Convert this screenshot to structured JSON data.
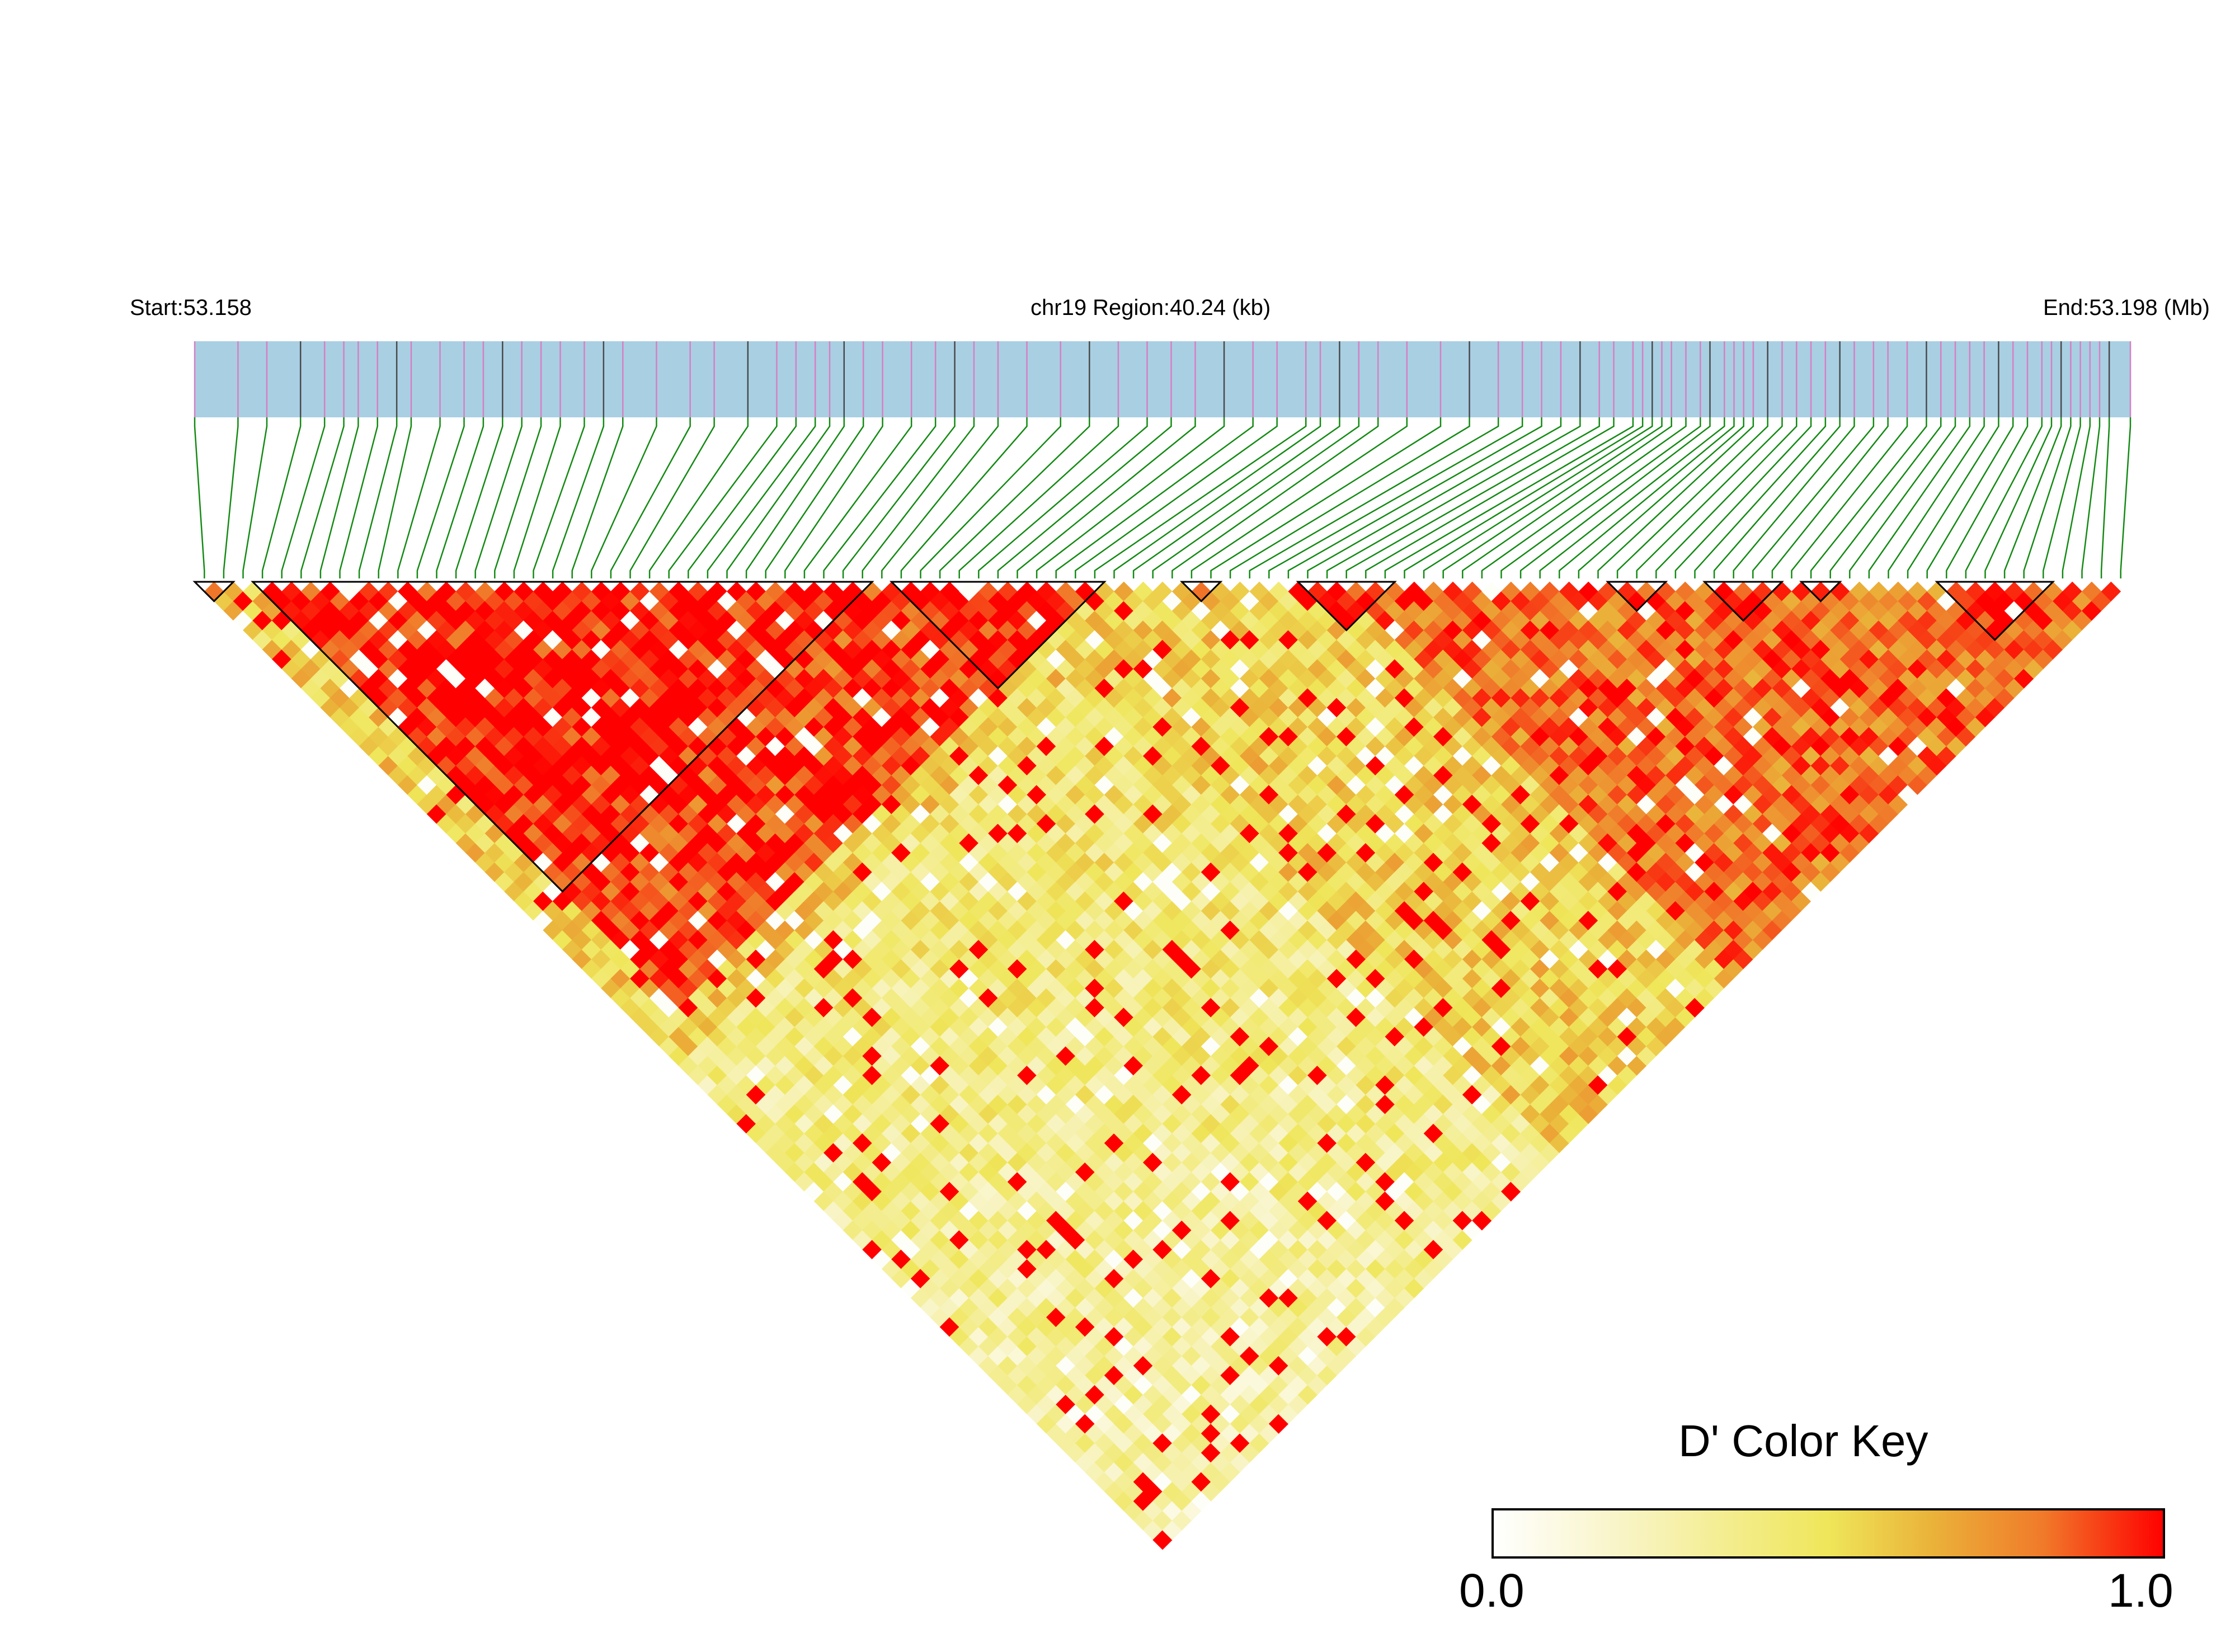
{
  "header": {
    "start_label": "Start:53.158",
    "region_label": "chr19 Region:40.24 (kb)",
    "end_label": "End:53.198 (Mb)"
  },
  "colors": {
    "track_background": "#a9cfe3",
    "snp_tick_pink": "#d67fc4",
    "snp_tick_dark": "#4a4a4a",
    "connector_green": "#138a13",
    "strong_ld": "#ff0000",
    "background": "#ffffff"
  },
  "color_key": {
    "title": "D' Color Key",
    "min_label": "0.0",
    "max_label": "1.0",
    "stops": [
      "#ffffff",
      "#f8f4c4",
      "#efe65a",
      "#eab43a",
      "#f07a2a",
      "#ff0000"
    ]
  },
  "chart_data": {
    "type": "heatmap",
    "description_type": "LD triangle heatmap (D')",
    "chromosome": "chr19",
    "region_start_mb": 53.158,
    "region_end_mb": 53.198,
    "region_length_kb": 40.24,
    "n_snps": 100,
    "value_range": [
      0.0,
      1.0
    ],
    "snp_positions_mb": [
      53.158,
      53.1589,
      53.1595,
      53.1602,
      53.1607,
      53.1611,
      53.1614,
      53.1618,
      53.1622,
      53.1625,
      53.1631,
      53.1636,
      53.164,
      53.1644,
      53.1648,
      53.1652,
      53.1656,
      53.1661,
      53.1665,
      53.1669,
      53.1676,
      53.1683,
      53.1688,
      53.1695,
      53.1701,
      53.1705,
      53.1709,
      53.1712,
      53.1715,
      53.1719,
      53.1723,
      53.1729,
      53.1734,
      53.1738,
      53.1742,
      53.1747,
      53.1753,
      53.176,
      53.1766,
      53.1772,
      53.1778,
      53.1783,
      53.1788,
      53.1794,
      53.18,
      53.1805,
      53.1811,
      53.1814,
      53.1818,
      53.1822,
      53.1826,
      53.1832,
      53.1839,
      53.1845,
      53.1851,
      53.1856,
      53.186,
      53.1864,
      53.1868,
      53.1872,
      53.1875,
      53.1879,
      53.1881,
      53.1883,
      53.1885,
      53.1887,
      53.189,
      53.1893,
      53.1895,
      53.1898,
      53.19,
      53.1902,
      53.1904,
      53.1907,
      53.191,
      53.1913,
      53.1916,
      53.1919,
      53.1922,
      53.1925,
      53.1929,
      53.1932,
      53.1936,
      53.194,
      53.1943,
      53.1946,
      53.1949,
      53.1952,
      53.1955,
      53.1958,
      53.1961,
      53.1964,
      53.1966,
      53.1968,
      53.197,
      53.1972,
      53.1974,
      53.1976,
      53.1978,
      53.19824
    ],
    "ld_blocks": [
      {
        "start": 0,
        "end": 1
      },
      {
        "start": 3,
        "end": 34
      },
      {
        "start": 36,
        "end": 46
      },
      {
        "start": 51,
        "end": 52
      },
      {
        "start": 57,
        "end": 61
      },
      {
        "start": 73,
        "end": 75
      },
      {
        "start": 78,
        "end": 81
      },
      {
        "start": 83,
        "end": 84
      },
      {
        "start": 90,
        "end": 95
      }
    ],
    "block_strength": 0.97,
    "background_strength_note": "inter-block D' mostly 0.1-0.9"
  }
}
